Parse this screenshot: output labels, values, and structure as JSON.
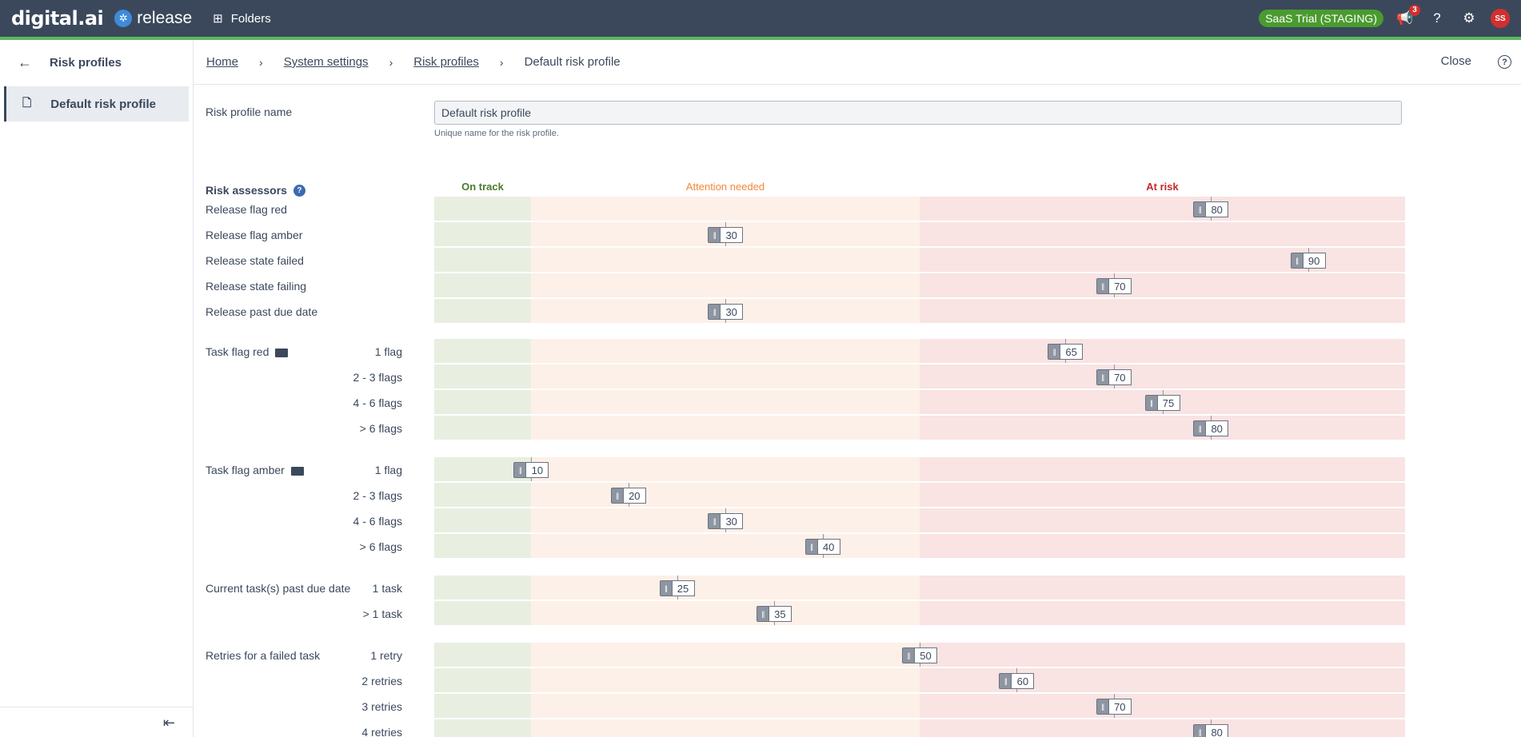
{
  "topbar": {
    "logo": "digital.ai",
    "product": "release",
    "folders_label": "Folders",
    "env_badge": "SaaS Trial (STAGING)",
    "notification_count": "3",
    "avatar_initials": "SS"
  },
  "sidebar": {
    "title": "Risk profiles",
    "items": [
      {
        "label": "Default risk profile"
      }
    ]
  },
  "breadcrumb": {
    "home": "Home",
    "system_settings": "System settings",
    "risk_profiles": "Risk profiles",
    "current": "Default risk profile",
    "close_label": "Close"
  },
  "form": {
    "name_label": "Risk profile name",
    "name_value": "Default risk profile",
    "name_help": "Unique name for the risk profile.",
    "assessors_title": "Risk assessors"
  },
  "zones": {
    "on_track": "On track",
    "attention": "Attention needed",
    "at_risk": "At risk",
    "colors": {
      "on_track": "#4a7a2a",
      "attention": "#f0883a",
      "at_risk": "#c62828"
    }
  },
  "assessors": [
    {
      "label": "Release flag red",
      "value": 80
    },
    {
      "label": "Release flag amber",
      "value": 30
    },
    {
      "label": "Release state failed",
      "value": 90
    },
    {
      "label": "Release state failing",
      "value": 70
    },
    {
      "label": "Release past due date",
      "value": 30
    }
  ],
  "groups": [
    {
      "label": "Task flag red",
      "icon": "flag-red-icon",
      "rows": [
        {
          "sub": "1 flag",
          "value": 65
        },
        {
          "sub": "2 - 3 flags",
          "value": 70
        },
        {
          "sub": "4 - 6 flags",
          "value": 75
        },
        {
          "sub": "> 6 flags",
          "value": 80
        }
      ]
    },
    {
      "label": "Task flag amber",
      "icon": "flag-amber-icon",
      "rows": [
        {
          "sub": "1 flag",
          "value": 10
        },
        {
          "sub": "2 - 3 flags",
          "value": 20
        },
        {
          "sub": "4 - 6 flags",
          "value": 30
        },
        {
          "sub": "> 6 flags",
          "value": 40
        }
      ]
    },
    {
      "label": "Current task(s) past due date",
      "rows": [
        {
          "sub": "1 task",
          "value": 25
        },
        {
          "sub": "> 1 task",
          "value": 35
        }
      ]
    },
    {
      "label": "Retries for a failed task",
      "rows": [
        {
          "sub": "1 retry",
          "value": 50
        },
        {
          "sub": "2 retries",
          "value": 60
        },
        {
          "sub": "3 retries",
          "value": 70
        },
        {
          "sub": "4 retries",
          "value": 80
        }
      ]
    }
  ]
}
